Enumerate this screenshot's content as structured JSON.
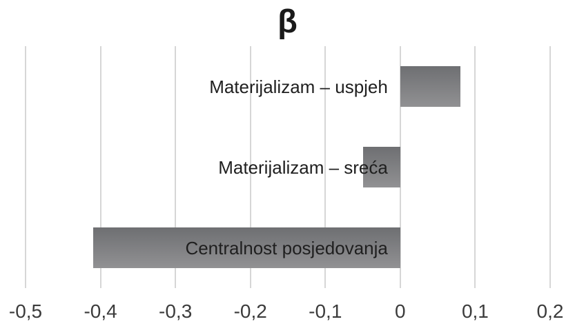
{
  "chart_data": {
    "type": "bar",
    "orientation": "horizontal",
    "title": "β",
    "categories": [
      "Materijalizam – uspjeh",
      "Materijalizam – sreća",
      "Centralnost posjedovanja"
    ],
    "values": [
      0.08,
      -0.05,
      -0.41
    ],
    "xlim": [
      -0.5,
      0.2
    ],
    "x_ticks": [
      -0.5,
      -0.4,
      -0.3,
      -0.2,
      -0.1,
      0,
      0.1,
      0.2
    ],
    "x_tick_labels": [
      "-0,5",
      "-0,4",
      "-0,3",
      "-0,2",
      "-0,1",
      "0",
      "0,1",
      "0,2"
    ],
    "xlabel": "",
    "ylabel": "",
    "grid": true,
    "legend": false,
    "colors": {
      "bar_top": "#6e6f72",
      "bar_bottom": "#919193",
      "gridline": "#d6d6d6",
      "title": "#1a1a1a",
      "category_label": "#1f1f1f",
      "tick_label": "#3b3b3b",
      "background": "#ffffff"
    }
  }
}
